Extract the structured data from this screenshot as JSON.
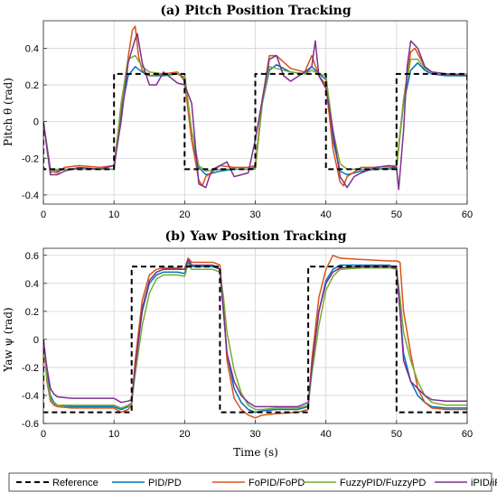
{
  "chart_data": [
    {
      "type": "line",
      "title": "(a) Pitch Position Tracking",
      "xlabel": "",
      "ylabel": "Pitch θ (rad)",
      "xlim": [
        0,
        60
      ],
      "ylim": [
        -0.45,
        0.55
      ],
      "xticks": [
        0,
        10,
        20,
        30,
        40,
        50,
        60
      ],
      "yticks": [
        -0.4,
        -0.2,
        0,
        0.2,
        0.4
      ],
      "grid": true,
      "series": [
        {
          "name": "Reference",
          "color": "#000000",
          "style": "dashed",
          "x": [
            0,
            0.01,
            10,
            10,
            20,
            20,
            30,
            30,
            40,
            40,
            50,
            50,
            60,
            60
          ],
          "y": [
            0,
            -0.26,
            -0.26,
            0.26,
            0.26,
            -0.26,
            -0.26,
            0.26,
            0.26,
            -0.26,
            -0.26,
            0.26,
            0.26,
            -0.26
          ]
        },
        {
          "name": "PID/PD",
          "color": "#0072bd",
          "style": "solid",
          "x": [
            0,
            1,
            2,
            3,
            5,
            8,
            10,
            11,
            12,
            13,
            14,
            15,
            17,
            19,
            20,
            21,
            22,
            23,
            25,
            27,
            29,
            30,
            31,
            32,
            33,
            35,
            37,
            38,
            39,
            40,
            41,
            42,
            43,
            45,
            47,
            50,
            51,
            52,
            53,
            54,
            55,
            57,
            60
          ],
          "y": [
            0,
            -0.26,
            -0.27,
            -0.26,
            -0.26,
            -0.26,
            -0.26,
            0.05,
            0.25,
            0.3,
            0.27,
            0.25,
            0.25,
            0.26,
            0.24,
            -0.1,
            -0.25,
            -0.29,
            -0.27,
            -0.26,
            -0.26,
            -0.25,
            0.1,
            0.28,
            0.31,
            0.27,
            0.26,
            0.3,
            0.26,
            0.23,
            -0.1,
            -0.27,
            -0.29,
            -0.27,
            -0.26,
            -0.25,
            0.1,
            0.28,
            0.32,
            0.28,
            0.26,
            0.25,
            0.25
          ]
        },
        {
          "name": "FoPID/FoPD",
          "color": "#d95319",
          "style": "solid",
          "x": [
            0,
            1,
            2,
            3,
            5,
            8,
            10,
            11,
            12,
            12.6,
            13,
            13.5,
            14,
            15,
            17,
            19,
            20,
            21,
            22,
            22.5,
            23,
            25,
            27,
            29,
            30,
            31,
            32,
            33,
            35,
            37,
            38,
            39,
            40,
            41,
            42,
            42.5,
            43,
            45,
            47,
            50,
            51,
            52,
            52.6,
            53,
            54,
            55,
            57,
            60
          ],
          "y": [
            0,
            -0.27,
            -0.28,
            -0.25,
            -0.24,
            -0.25,
            -0.24,
            0.08,
            0.35,
            0.5,
            0.52,
            0.35,
            0.28,
            0.25,
            0.26,
            0.27,
            0.22,
            -0.1,
            -0.32,
            -0.35,
            -0.3,
            -0.24,
            -0.25,
            -0.25,
            -0.24,
            0.12,
            0.36,
            0.36,
            0.29,
            0.27,
            0.36,
            0.25,
            0.2,
            -0.15,
            -0.33,
            -0.35,
            -0.3,
            -0.25,
            -0.25,
            -0.24,
            0.12,
            0.38,
            0.4,
            0.37,
            0.3,
            0.27,
            0.26,
            0.25
          ]
        },
        {
          "name": "FuzzyPID/FuzzyPD",
          "color": "#77ac30",
          "style": "solid",
          "x": [
            0,
            1,
            2,
            3,
            5,
            8,
            10,
            11,
            12,
            13,
            14,
            15,
            17,
            19,
            20,
            21,
            22,
            23,
            25,
            27,
            29,
            30,
            31,
            32,
            33,
            35,
            37,
            38,
            39,
            40,
            41,
            42,
            43,
            45,
            47,
            50,
            51,
            52,
            53,
            54,
            55,
            57,
            60
          ],
          "y": [
            0,
            -0.28,
            -0.26,
            -0.26,
            -0.26,
            -0.26,
            -0.26,
            0.1,
            0.34,
            0.36,
            0.3,
            0.27,
            0.26,
            0.26,
            0.26,
            -0.05,
            -0.24,
            -0.27,
            -0.26,
            -0.26,
            -0.26,
            -0.26,
            0.1,
            0.3,
            0.29,
            0.27,
            0.26,
            0.28,
            0.26,
            0.25,
            -0.05,
            -0.23,
            -0.26,
            -0.26,
            -0.26,
            -0.26,
            0.12,
            0.34,
            0.34,
            0.29,
            0.27,
            0.26,
            0.26
          ]
        },
        {
          "name": "iPID/iPD",
          "color": "#7e2f8e",
          "style": "solid",
          "x": [
            0,
            1,
            2,
            3,
            5,
            8,
            10,
            11,
            12,
            13,
            13.3,
            14,
            15,
            16,
            17,
            19,
            20,
            21,
            22,
            23,
            23.5,
            24,
            25,
            26,
            27,
            29,
            30,
            31,
            32,
            33,
            34,
            35,
            37,
            38,
            38.5,
            39,
            40,
            41,
            42,
            43,
            44,
            45,
            47,
            49,
            50,
            50.3,
            51,
            51.5,
            52,
            53,
            54,
            55,
            57,
            60
          ],
          "y": [
            0,
            -0.29,
            -0.29,
            -0.27,
            -0.25,
            -0.26,
            -0.24,
            0.0,
            0.32,
            0.45,
            0.48,
            0.32,
            0.2,
            0.2,
            0.27,
            0.21,
            0.2,
            0.1,
            -0.34,
            -0.36,
            -0.3,
            -0.26,
            -0.24,
            -0.22,
            -0.3,
            -0.28,
            -0.1,
            0.12,
            0.34,
            0.36,
            0.25,
            0.22,
            0.27,
            0.3,
            0.44,
            0.25,
            0.18,
            -0.05,
            -0.3,
            -0.36,
            -0.3,
            -0.28,
            -0.25,
            -0.24,
            -0.25,
            -0.37,
            -0.05,
            0.3,
            0.44,
            0.4,
            0.3,
            0.27,
            0.26,
            0.25
          ]
        }
      ]
    },
    {
      "type": "line",
      "title": "(b) Yaw Position Tracking",
      "xlabel": "Time (s)",
      "ylabel": "Yaw ψ (rad)",
      "xlim": [
        0,
        60
      ],
      "ylim": [
        -0.6,
        0.65
      ],
      "xticks": [
        0,
        10,
        20,
        30,
        40,
        50,
        60
      ],
      "yticks": [
        -0.6,
        -0.4,
        -0.2,
        0,
        0.2,
        0.4,
        0.6
      ],
      "grid": true,
      "series": [
        {
          "name": "Reference",
          "color": "#000000",
          "style": "dashed",
          "x": [
            0,
            0.01,
            12.5,
            12.5,
            25,
            25,
            37.5,
            37.5,
            50,
            50,
            60
          ],
          "y": [
            0,
            -0.52,
            -0.52,
            0.52,
            0.52,
            -0.52,
            -0.52,
            0.52,
            0.52,
            -0.52,
            -0.52
          ]
        },
        {
          "name": "PID/PD",
          "color": "#0072bd",
          "style": "solid",
          "x": [
            0,
            0.5,
            1,
            1.5,
            2,
            4,
            8,
            10,
            11,
            12,
            12.5,
            13,
            14,
            15,
            16,
            17,
            19,
            20,
            20.5,
            21,
            23,
            24,
            25,
            25.5,
            26,
            27,
            28,
            29,
            30,
            31,
            33,
            36,
            37.5,
            38,
            39,
            40,
            41,
            42,
            45,
            49,
            50,
            50.5,
            51,
            52,
            53,
            54,
            55,
            57,
            60
          ],
          "y": [
            0,
            -0.25,
            -0.4,
            -0.45,
            -0.47,
            -0.48,
            -0.48,
            -0.48,
            -0.5,
            -0.48,
            -0.45,
            -0.2,
            0.2,
            0.4,
            0.46,
            0.48,
            0.48,
            0.47,
            0.55,
            0.52,
            0.52,
            0.52,
            0.5,
            0.2,
            -0.1,
            -0.35,
            -0.45,
            -0.5,
            -0.52,
            -0.51,
            -0.5,
            -0.5,
            -0.48,
            -0.2,
            0.2,
            0.42,
            0.5,
            0.53,
            0.53,
            0.53,
            0.5,
            0.2,
            -0.1,
            -0.3,
            -0.4,
            -0.45,
            -0.48,
            -0.49,
            -0.49
          ]
        },
        {
          "name": "FoPID/FoPD",
          "color": "#d95319",
          "style": "solid",
          "x": [
            0,
            0.5,
            1,
            1.5,
            2,
            4,
            8,
            10,
            11,
            12,
            12.5,
            13,
            14,
            15,
            16,
            17,
            19,
            20,
            20.5,
            21,
            23,
            24,
            25,
            25.5,
            26,
            27,
            28,
            29,
            30,
            31,
            33,
            36,
            37.5,
            38,
            39,
            40,
            41,
            42,
            45,
            49,
            50,
            50.5,
            51,
            52,
            53,
            54,
            55,
            57,
            60
          ],
          "y": [
            0,
            -0.3,
            -0.44,
            -0.47,
            -0.48,
            -0.49,
            -0.49,
            -0.49,
            -0.52,
            -0.5,
            -0.47,
            -0.15,
            0.28,
            0.46,
            0.5,
            0.51,
            0.51,
            0.5,
            0.58,
            0.55,
            0.55,
            0.55,
            0.53,
            0.25,
            -0.15,
            -0.42,
            -0.5,
            -0.54,
            -0.56,
            -0.54,
            -0.53,
            -0.52,
            -0.5,
            -0.15,
            0.3,
            0.5,
            0.6,
            0.58,
            0.57,
            0.56,
            0.56,
            0.55,
            0.2,
            -0.1,
            -0.35,
            -0.45,
            -0.49,
            -0.5,
            -0.5
          ]
        },
        {
          "name": "FuzzyPID/FuzzyPD",
          "color": "#77ac30",
          "style": "solid",
          "x": [
            0,
            0.5,
            1,
            1.5,
            2,
            4,
            8,
            10,
            11,
            12,
            12.5,
            13,
            14,
            15,
            16,
            17,
            19,
            20,
            20.5,
            21,
            23,
            24,
            25,
            25.5,
            26,
            27,
            28,
            29,
            30,
            31,
            33,
            36,
            37.5,
            38,
            39,
            40,
            41,
            42,
            45,
            49,
            50,
            50.5,
            51,
            52,
            53,
            54,
            55,
            57,
            60
          ],
          "y": [
            0,
            -0.28,
            -0.42,
            -0.46,
            -0.47,
            -0.47,
            -0.47,
            -0.47,
            -0.49,
            -0.47,
            -0.45,
            -0.25,
            0.1,
            0.33,
            0.43,
            0.46,
            0.46,
            0.45,
            0.54,
            0.5,
            0.5,
            0.5,
            0.48,
            0.3,
            0.05,
            -0.22,
            -0.38,
            -0.47,
            -0.5,
            -0.5,
            -0.49,
            -0.49,
            -0.47,
            -0.25,
            0.1,
            0.35,
            0.45,
            0.5,
            0.51,
            0.51,
            0.5,
            0.3,
            0.05,
            -0.15,
            -0.3,
            -0.4,
            -0.45,
            -0.47,
            -0.47
          ]
        },
        {
          "name": "iPID/iPD",
          "color": "#7e2f8e",
          "style": "solid",
          "x": [
            0,
            0.5,
            1,
            1.5,
            2,
            4,
            8,
            10,
            11,
            12,
            12.5,
            13,
            14,
            15,
            16,
            17,
            19,
            20,
            20.5,
            21,
            23,
            24,
            25,
            25.5,
            26,
            27,
            28,
            29,
            30,
            31,
            33,
            36,
            37.5,
            38,
            39,
            40,
            41,
            42,
            45,
            49,
            50,
            50.5,
            51,
            52,
            53,
            54,
            55,
            57,
            60
          ],
          "y": [
            0,
            -0.2,
            -0.35,
            -0.39,
            -0.41,
            -0.42,
            -0.42,
            -0.42,
            -0.45,
            -0.44,
            -0.43,
            -0.2,
            0.22,
            0.42,
            0.48,
            0.5,
            0.5,
            0.5,
            0.57,
            0.53,
            0.53,
            0.53,
            0.5,
            0.2,
            -0.1,
            -0.3,
            -0.4,
            -0.45,
            -0.48,
            -0.48,
            -0.48,
            -0.48,
            -0.45,
            -0.2,
            0.2,
            0.4,
            0.48,
            0.51,
            0.52,
            0.52,
            0.51,
            0.2,
            -0.15,
            -0.3,
            -0.35,
            -0.4,
            -0.43,
            -0.44,
            -0.44
          ]
        }
      ]
    }
  ],
  "legend": {
    "placement": "bottom",
    "entries": [
      "Reference",
      "PID/PD",
      "FoPID/FoPD",
      "FuzzyPID/FuzzyPD",
      "iPID/iPD"
    ]
  }
}
